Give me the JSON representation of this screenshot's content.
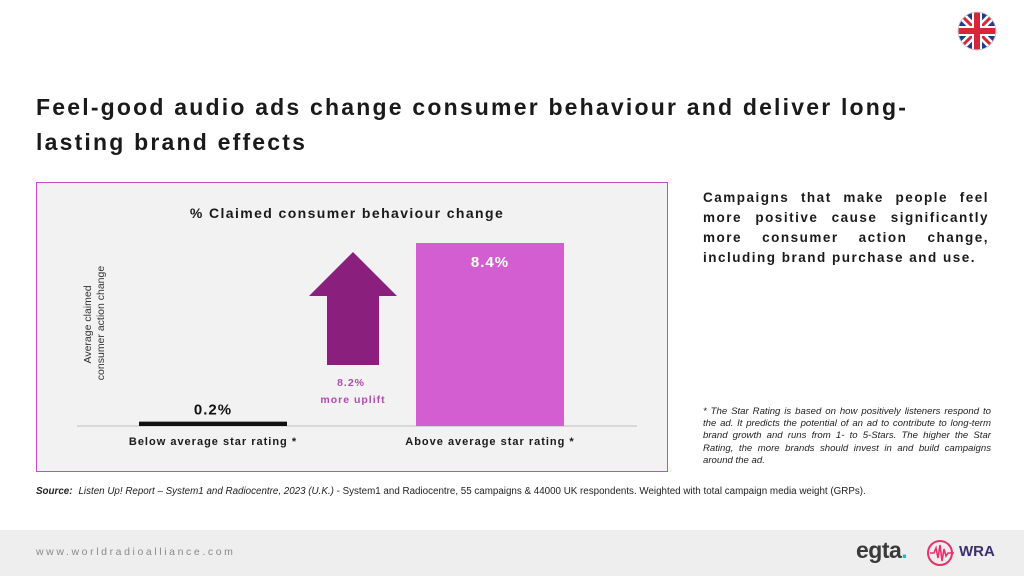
{
  "slide": {
    "title": "Feel-good audio ads change consumer behaviour and deliver long-lasting brand effects",
    "side_text": "Campaigns that make people feel more positive cause significantly more consumer action change, including brand purchase and use.",
    "footnote": "* The Star Rating is based on how positively listeners respond to the ad. It predicts the potential of an ad to contribute to long-term brand growth and runs from 1- to 5-Stars. The higher the Star Rating, the more brands should invest in and build campaigns around the ad.",
    "source_label": "Source:",
    "source_ref": "Listen Up! Report – System1 and Radiocentre, 2023 (U.K.)",
    "source_rest": " - System1 and Radiocentre, 55 campaigns & 44000 UK respondents. Weighted with total campaign media weight (GRPs).",
    "flag_icon": "uk-flag-icon"
  },
  "footer": {
    "url": "www.worldradioalliance.com",
    "egta_text": "egta",
    "egta_dot": ".",
    "wra_text": "WRA"
  },
  "colors": {
    "bar_above": "#d25ed2",
    "bar_below": "#111111",
    "arrow": "#8b1f7e",
    "chart_border": "#c84bc8"
  },
  "chart_data": {
    "type": "bar",
    "title": "% Claimed consumer behaviour change",
    "ylabel": "Average claimed consumer action change",
    "ylabel_lines": [
      "Average claimed",
      "consumer action change"
    ],
    "categories": [
      "Below average star rating *",
      "Above average star rating *"
    ],
    "values": [
      0.2,
      8.4
    ],
    "value_labels": [
      "0.2%",
      "8.4%"
    ],
    "ylim": [
      0,
      8.4
    ],
    "grid": false,
    "annotation": {
      "lines": [
        "8.2%",
        "more uplift"
      ],
      "value": 8.2,
      "icon": "up-arrow-icon"
    }
  }
}
